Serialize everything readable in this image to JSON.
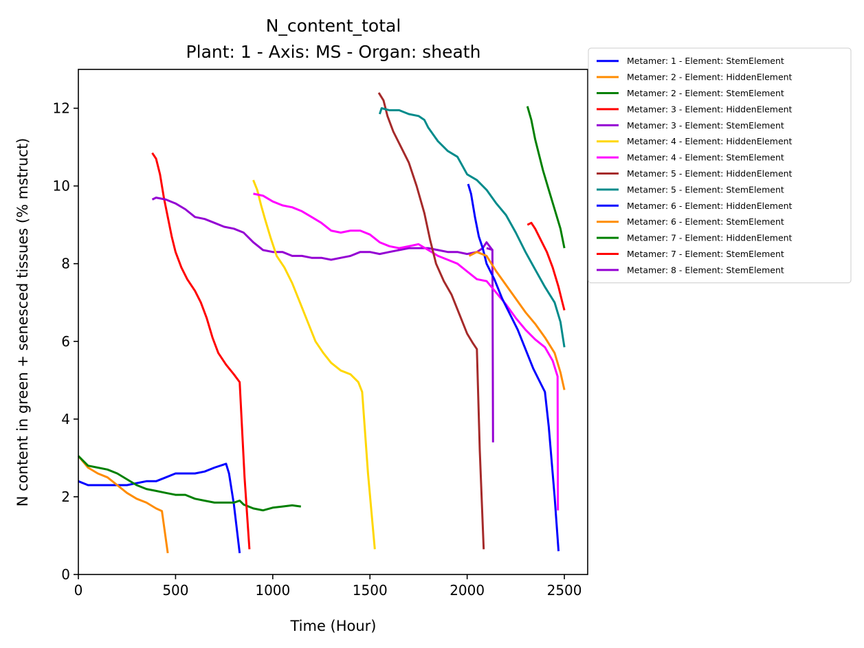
{
  "chart_data": {
    "type": "line",
    "title": "N_content_total",
    "subtitle": "Plant: 1 - Axis: MS - Organ: sheath",
    "xlabel": "Time (Hour)",
    "ylabel": "N content in green + senesced tissues (% mstruct)",
    "xlim": [
      0,
      2620
    ],
    "ylim": [
      0,
      13
    ],
    "xticks": [
      0,
      500,
      1000,
      1500,
      2000,
      2500
    ],
    "yticks": [
      0,
      2,
      4,
      6,
      8,
      10,
      12
    ],
    "grid": false,
    "legend_position": "outside-top-right",
    "series": [
      {
        "name": "Metamer: 1 - Element: StemElement",
        "color": "#0000ff",
        "points": [
          [
            0,
            2.4
          ],
          [
            50,
            2.3
          ],
          [
            100,
            2.3
          ],
          [
            150,
            2.3
          ],
          [
            200,
            2.3
          ],
          [
            250,
            2.3
          ],
          [
            300,
            2.35
          ],
          [
            350,
            2.4
          ],
          [
            400,
            2.4
          ],
          [
            450,
            2.5
          ],
          [
            500,
            2.6
          ],
          [
            550,
            2.6
          ],
          [
            600,
            2.6
          ],
          [
            650,
            2.65
          ],
          [
            700,
            2.75
          ],
          [
            760,
            2.85
          ],
          [
            775,
            2.6
          ],
          [
            800,
            1.8
          ],
          [
            830,
            0.55
          ]
        ]
      },
      {
        "name": "Metamer: 2 - Element: HiddenElement",
        "color": "#ff8c00",
        "points": [
          [
            0,
            3.05
          ],
          [
            50,
            2.75
          ],
          [
            100,
            2.6
          ],
          [
            150,
            2.5
          ],
          [
            200,
            2.3
          ],
          [
            250,
            2.1
          ],
          [
            300,
            1.95
          ],
          [
            350,
            1.85
          ],
          [
            400,
            1.7
          ],
          [
            430,
            1.63
          ],
          [
            460,
            0.55
          ]
        ]
      },
      {
        "name": "Metamer: 2 - Element: StemElement",
        "color": "#008000",
        "points": [
          [
            0,
            3.05
          ],
          [
            50,
            2.8
          ],
          [
            100,
            2.75
          ],
          [
            150,
            2.7
          ],
          [
            200,
            2.6
          ],
          [
            250,
            2.45
          ],
          [
            300,
            2.3
          ],
          [
            350,
            2.2
          ],
          [
            400,
            2.15
          ],
          [
            450,
            2.1
          ],
          [
            500,
            2.05
          ],
          [
            550,
            2.05
          ],
          [
            600,
            1.95
          ],
          [
            650,
            1.9
          ],
          [
            700,
            1.85
          ],
          [
            750,
            1.85
          ],
          [
            800,
            1.85
          ],
          [
            830,
            1.9
          ],
          [
            850,
            1.8
          ],
          [
            900,
            1.7
          ],
          [
            950,
            1.65
          ],
          [
            1000,
            1.72
          ],
          [
            1050,
            1.75
          ],
          [
            1100,
            1.78
          ],
          [
            1145,
            1.75
          ]
        ]
      },
      {
        "name": "Metamer: 3 - Element: HiddenElement",
        "color": "#ff0000",
        "points": [
          [
            380,
            10.85
          ],
          [
            400,
            10.7
          ],
          [
            420,
            10.3
          ],
          [
            440,
            9.7
          ],
          [
            460,
            9.2
          ],
          [
            480,
            8.7
          ],
          [
            500,
            8.3
          ],
          [
            530,
            7.9
          ],
          [
            560,
            7.6
          ],
          [
            600,
            7.3
          ],
          [
            630,
            7.0
          ],
          [
            660,
            6.6
          ],
          [
            690,
            6.1
          ],
          [
            720,
            5.7
          ],
          [
            760,
            5.4
          ],
          [
            800,
            5.15
          ],
          [
            830,
            4.95
          ],
          [
            855,
            2.5
          ],
          [
            880,
            0.65
          ]
        ]
      },
      {
        "name": "Metamer: 3 - Element: StemElement",
        "color": "#9400d3",
        "points": [
          [
            380,
            9.65
          ],
          [
            400,
            9.7
          ],
          [
            450,
            9.65
          ],
          [
            500,
            9.55
          ],
          [
            550,
            9.4
          ],
          [
            600,
            9.2
          ],
          [
            650,
            9.15
          ],
          [
            700,
            9.05
          ],
          [
            750,
            8.95
          ],
          [
            800,
            8.9
          ],
          [
            850,
            8.8
          ],
          [
            900,
            8.55
          ],
          [
            950,
            8.35
          ],
          [
            1000,
            8.3
          ],
          [
            1050,
            8.3
          ],
          [
            1100,
            8.2
          ],
          [
            1150,
            8.2
          ],
          [
            1200,
            8.15
          ],
          [
            1250,
            8.15
          ],
          [
            1300,
            8.1
          ],
          [
            1350,
            8.15
          ],
          [
            1400,
            8.2
          ],
          [
            1450,
            8.3
          ],
          [
            1500,
            8.3
          ],
          [
            1550,
            8.25
          ],
          [
            1600,
            8.3
          ],
          [
            1650,
            8.35
          ],
          [
            1700,
            8.4
          ],
          [
            1750,
            8.4
          ],
          [
            1800,
            8.4
          ],
          [
            1850,
            8.35
          ],
          [
            1900,
            8.3
          ],
          [
            1950,
            8.3
          ],
          [
            2000,
            8.25
          ],
          [
            2050,
            8.3
          ],
          [
            2080,
            8.4
          ],
          [
            2100,
            8.55
          ],
          [
            2130,
            8.35
          ],
          [
            2133,
            3.4
          ]
        ]
      },
      {
        "name": "Metamer: 4 - Element: HiddenElement",
        "color": "#ffd700",
        "points": [
          [
            900,
            10.15
          ],
          [
            920,
            9.9
          ],
          [
            940,
            9.5
          ],
          [
            960,
            9.15
          ],
          [
            990,
            8.65
          ],
          [
            1020,
            8.2
          ],
          [
            1060,
            7.9
          ],
          [
            1100,
            7.5
          ],
          [
            1140,
            7.0
          ],
          [
            1180,
            6.5
          ],
          [
            1220,
            6.0
          ],
          [
            1260,
            5.7
          ],
          [
            1300,
            5.45
          ],
          [
            1350,
            5.25
          ],
          [
            1400,
            5.15
          ],
          [
            1440,
            4.95
          ],
          [
            1460,
            4.7
          ],
          [
            1490,
            2.6
          ],
          [
            1525,
            0.65
          ]
        ]
      },
      {
        "name": "Metamer: 4 - Element: StemElement",
        "color": "#ff00ff",
        "points": [
          [
            900,
            9.8
          ],
          [
            950,
            9.75
          ],
          [
            1000,
            9.6
          ],
          [
            1050,
            9.5
          ],
          [
            1100,
            9.45
          ],
          [
            1150,
            9.35
          ],
          [
            1200,
            9.2
          ],
          [
            1250,
            9.05
          ],
          [
            1300,
            8.85
          ],
          [
            1350,
            8.8
          ],
          [
            1400,
            8.85
          ],
          [
            1450,
            8.85
          ],
          [
            1500,
            8.75
          ],
          [
            1550,
            8.55
          ],
          [
            1600,
            8.45
          ],
          [
            1650,
            8.4
          ],
          [
            1700,
            8.45
          ],
          [
            1750,
            8.5
          ],
          [
            1800,
            8.35
          ],
          [
            1850,
            8.2
          ],
          [
            1900,
            8.1
          ],
          [
            1950,
            8.0
          ],
          [
            2000,
            7.8
          ],
          [
            2050,
            7.6
          ],
          [
            2100,
            7.55
          ],
          [
            2150,
            7.25
          ],
          [
            2200,
            6.95
          ],
          [
            2250,
            6.6
          ],
          [
            2300,
            6.3
          ],
          [
            2350,
            6.05
          ],
          [
            2400,
            5.85
          ],
          [
            2440,
            5.5
          ],
          [
            2465,
            5.1
          ],
          [
            2467,
            1.65
          ]
        ]
      },
      {
        "name": "Metamer: 5 - Element: HiddenElement",
        "color": "#a52a2a",
        "points": [
          [
            1545,
            12.4
          ],
          [
            1570,
            12.2
          ],
          [
            1590,
            11.8
          ],
          [
            1620,
            11.4
          ],
          [
            1660,
            11.0
          ],
          [
            1700,
            10.6
          ],
          [
            1740,
            10.0
          ],
          [
            1780,
            9.3
          ],
          [
            1810,
            8.6
          ],
          [
            1840,
            8.0
          ],
          [
            1880,
            7.55
          ],
          [
            1920,
            7.2
          ],
          [
            1960,
            6.7
          ],
          [
            2000,
            6.2
          ],
          [
            2030,
            5.95
          ],
          [
            2050,
            5.8
          ],
          [
            2065,
            3.2
          ],
          [
            2085,
            0.65
          ]
        ]
      },
      {
        "name": "Metamer: 5 - Element: StemElement",
        "color": "#008b8b",
        "points": [
          [
            1550,
            11.85
          ],
          [
            1560,
            12.0
          ],
          [
            1600,
            11.95
          ],
          [
            1650,
            11.95
          ],
          [
            1700,
            11.85
          ],
          [
            1750,
            11.8
          ],
          [
            1780,
            11.7
          ],
          [
            1800,
            11.5
          ],
          [
            1850,
            11.15
          ],
          [
            1900,
            10.9
          ],
          [
            1950,
            10.75
          ],
          [
            2000,
            10.3
          ],
          [
            2050,
            10.15
          ],
          [
            2100,
            9.9
          ],
          [
            2150,
            9.55
          ],
          [
            2200,
            9.25
          ],
          [
            2250,
            8.8
          ],
          [
            2300,
            8.3
          ],
          [
            2350,
            7.85
          ],
          [
            2400,
            7.4
          ],
          [
            2450,
            7.0
          ],
          [
            2480,
            6.5
          ],
          [
            2500,
            5.85
          ]
        ]
      },
      {
        "name": "Metamer: 6 - Element: HiddenElement",
        "color": "#0000ff",
        "points": [
          [
            2005,
            10.05
          ],
          [
            2020,
            9.8
          ],
          [
            2040,
            9.2
          ],
          [
            2060,
            8.7
          ],
          [
            2080,
            8.4
          ],
          [
            2100,
            8.0
          ],
          [
            2140,
            7.6
          ],
          [
            2180,
            7.1
          ],
          [
            2220,
            6.7
          ],
          [
            2260,
            6.3
          ],
          [
            2300,
            5.8
          ],
          [
            2340,
            5.3
          ],
          [
            2380,
            4.9
          ],
          [
            2400,
            4.7
          ],
          [
            2420,
            3.8
          ],
          [
            2450,
            2.0
          ],
          [
            2470,
            0.6
          ]
        ]
      },
      {
        "name": "Metamer: 6 - Element: StemElement",
        "color": "#ff8c00",
        "points": [
          [
            2010,
            8.2
          ],
          [
            2050,
            8.3
          ],
          [
            2100,
            8.2
          ],
          [
            2150,
            7.8
          ],
          [
            2200,
            7.45
          ],
          [
            2250,
            7.1
          ],
          [
            2300,
            6.75
          ],
          [
            2350,
            6.45
          ],
          [
            2400,
            6.1
          ],
          [
            2450,
            5.7
          ],
          [
            2480,
            5.2
          ],
          [
            2500,
            4.75
          ]
        ]
      },
      {
        "name": "Metamer: 7 - Element: HiddenElement",
        "color": "#008000",
        "points": [
          [
            2310,
            12.05
          ],
          [
            2330,
            11.7
          ],
          [
            2350,
            11.2
          ],
          [
            2370,
            10.8
          ],
          [
            2390,
            10.4
          ],
          [
            2420,
            9.9
          ],
          [
            2450,
            9.4
          ],
          [
            2480,
            8.9
          ],
          [
            2500,
            8.4
          ]
        ]
      },
      {
        "name": "Metamer: 7 - Element: StemElement",
        "color": "#ff0000",
        "points": [
          [
            2310,
            9.0
          ],
          [
            2330,
            9.05
          ],
          [
            2350,
            8.9
          ],
          [
            2380,
            8.6
          ],
          [
            2410,
            8.3
          ],
          [
            2440,
            7.9
          ],
          [
            2470,
            7.4
          ],
          [
            2490,
            7.0
          ],
          [
            2500,
            6.8
          ]
        ]
      },
      {
        "name": "Metamer: 8 - Element: StemElement",
        "color": "#9400d3",
        "points": [
          [
            2100,
            8.4
          ],
          [
            2133,
            8.35
          ]
        ]
      }
    ]
  }
}
